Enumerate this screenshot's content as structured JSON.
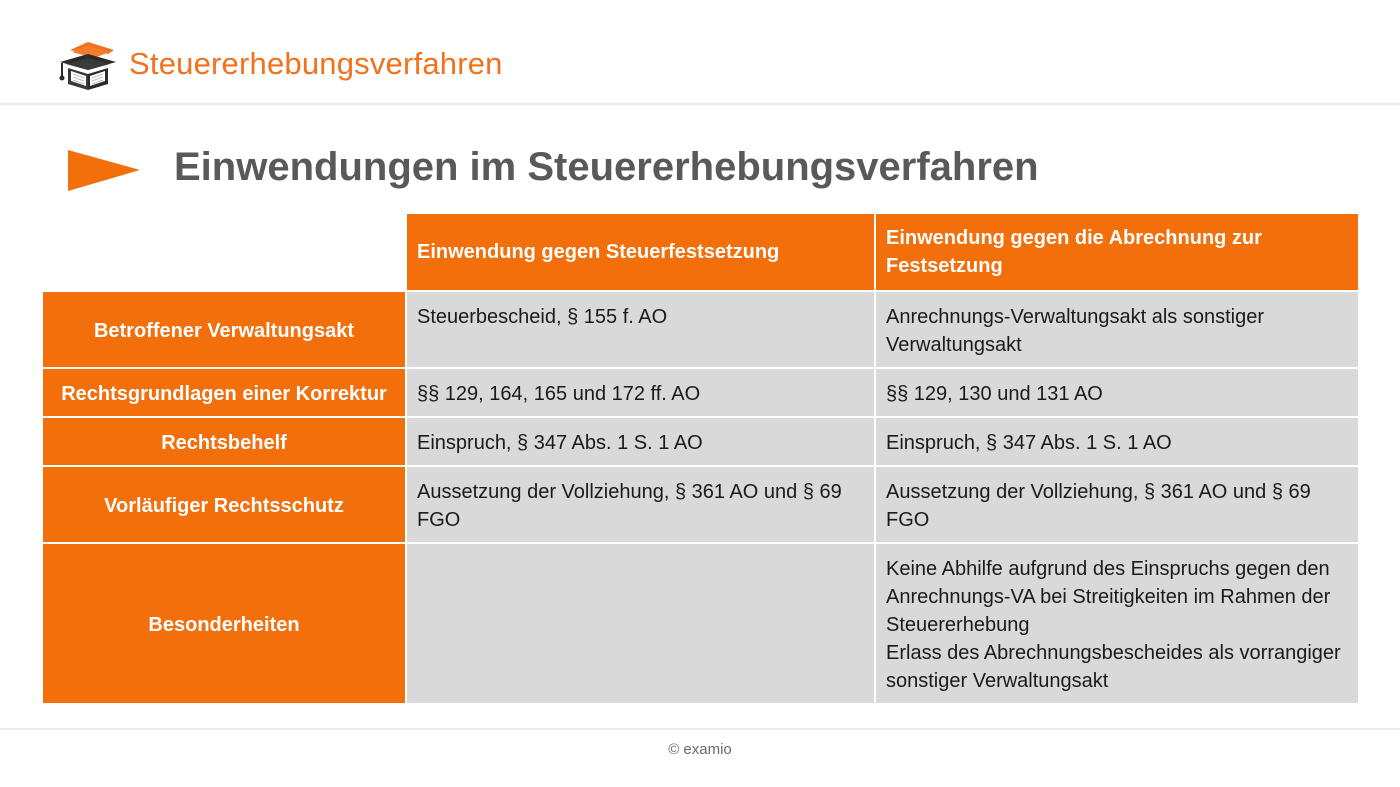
{
  "header": {
    "title": "Steuererhebungsverfahren",
    "logo_icon": "graduation-cap-book-icon",
    "accent_color": "#f2711c"
  },
  "slide": {
    "title": "Einwendungen im Steuererhebungsverfahren",
    "bullet_icon": "arrow-icon"
  },
  "table": {
    "columns": [
      "",
      "Einwendung gegen Steuerfestsetzung",
      "Einwendung gegen die Abrechnung zur Festsetzung"
    ],
    "rows": [
      {
        "label": "Betroffener Verwaltungsakt",
        "cells": [
          "Steuerbescheid, § 155 f. AO",
          "Anrechnungs-Verwaltungsakt als sonstiger Verwaltungsakt"
        ]
      },
      {
        "label": "Rechtsgrundlagen einer Korrektur",
        "cells": [
          "§§ 129, 164, 165 und 172 ff. AO",
          "§§ 129, 130 und 131 AO"
        ]
      },
      {
        "label": "Rechtsbehelf",
        "cells": [
          "Einspruch, § 347 Abs. 1 S. 1 AO",
          "Einspruch, § 347 Abs. 1 S. 1 AO"
        ]
      },
      {
        "label": "Vorläufiger Rechtsschutz",
        "cells": [
          "Aussetzung der Vollziehung, § 361 AO und § 69 FGO",
          "Aussetzung der Vollziehung, § 361 AO und § 69 FGO"
        ]
      },
      {
        "label": "Besonderheiten",
        "cells": [
          "",
          "Keine Abhilfe aufgrund des Einspruchs gegen den Anrechnungs-VA bei Streitigkeiten im Rahmen der Steuererhebung\nErlass des Abrechnungsbescheides als vorrangiger sonstiger Verwaltungsakt"
        ]
      }
    ]
  },
  "footer": {
    "copyright": "© examio"
  }
}
